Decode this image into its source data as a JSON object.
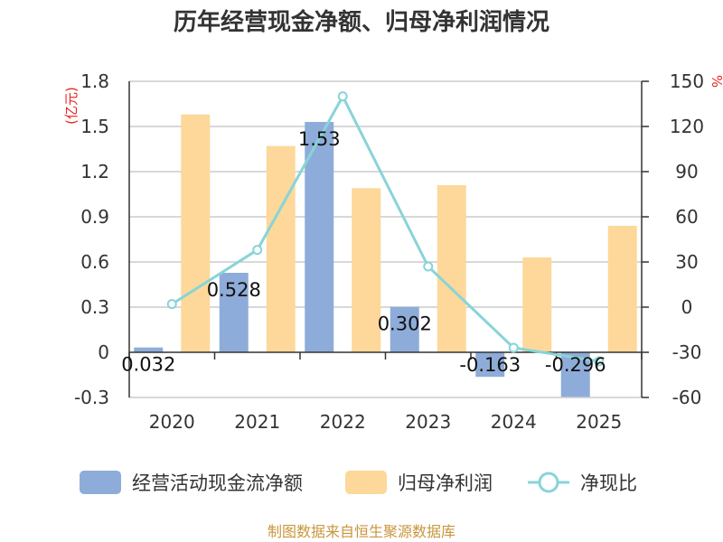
{
  "title": "历年经营现金净额、归母净利润情况",
  "source": "制图数据来自恒生聚源数据库",
  "colors": {
    "cash_bar": "#8eacd9",
    "profit_bar": "#fdd89a",
    "ratio_line": "#88d4d8",
    "unit": "#e8231f"
  },
  "chart_data": {
    "type": "bar",
    "title": "历年经营现金净额、归母净利润情况",
    "categories": [
      "2020",
      "2021",
      "2022",
      "2023",
      "2024",
      "2025"
    ],
    "y_left": {
      "unit": "(亿元)",
      "ylim": [
        -0.3,
        1.8
      ],
      "ticks": [
        -0.3,
        0,
        0.3,
        0.6,
        0.9,
        1.2,
        1.5,
        1.8
      ],
      "tick_labels": [
        "-0.3",
        "0",
        "0.3",
        "0.6",
        "0.9",
        "1.2",
        "1.5",
        "1.8"
      ]
    },
    "y_right": {
      "unit": "%",
      "ylim": [
        -60,
        150
      ],
      "ticks": [
        -60,
        -30,
        0,
        30,
        60,
        90,
        120,
        150
      ],
      "tick_labels": [
        "-60",
        "-30",
        "0",
        "30",
        "60",
        "90",
        "120",
        "150"
      ]
    },
    "series": [
      {
        "name": "经营活动现金流净额",
        "type": "bar",
        "axis": "left",
        "values": [
          0.032,
          0.528,
          1.53,
          0.302,
          -0.163,
          -0.296
        ],
        "labels": [
          "0.032",
          "0.528",
          "1.53",
          "0.302",
          "-0.163",
          "-0.296"
        ]
      },
      {
        "name": "归母净利润",
        "type": "bar",
        "axis": "left",
        "values": [
          1.58,
          1.37,
          1.09,
          1.11,
          0.63,
          0.84
        ]
      },
      {
        "name": "净现比",
        "type": "line",
        "axis": "right",
        "values": [
          2,
          38,
          140,
          27,
          -27,
          -36
        ]
      }
    ],
    "legend_position": "bottom",
    "grid": true
  }
}
